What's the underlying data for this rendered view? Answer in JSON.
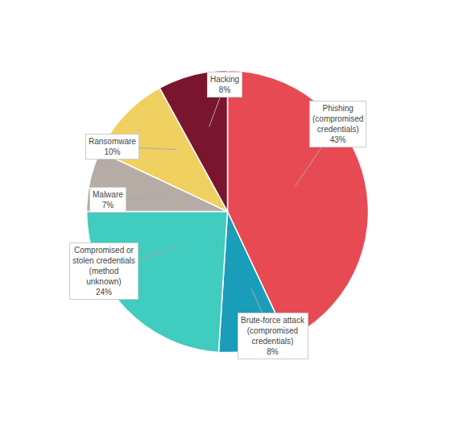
{
  "chart_data": {
    "type": "pie",
    "values": [
      43,
      8,
      24,
      7,
      10,
      8
    ],
    "colors": [
      "#e84a54",
      "#1a9db8",
      "#40ccbf",
      "#b5aca5",
      "#f0d060",
      "#7a1530"
    ],
    "annotations": [
      "Phishing\n(compromised\ncredentials)\n43%",
      "Brute-force attack\n(compromised\ncredentials)\n8%",
      "Compromised or\nstolen credentials\n(method\nunknown)\n24%",
      "Malware\n7%",
      "Ransomware\n10%",
      "Hacking\n8%"
    ]
  }
}
